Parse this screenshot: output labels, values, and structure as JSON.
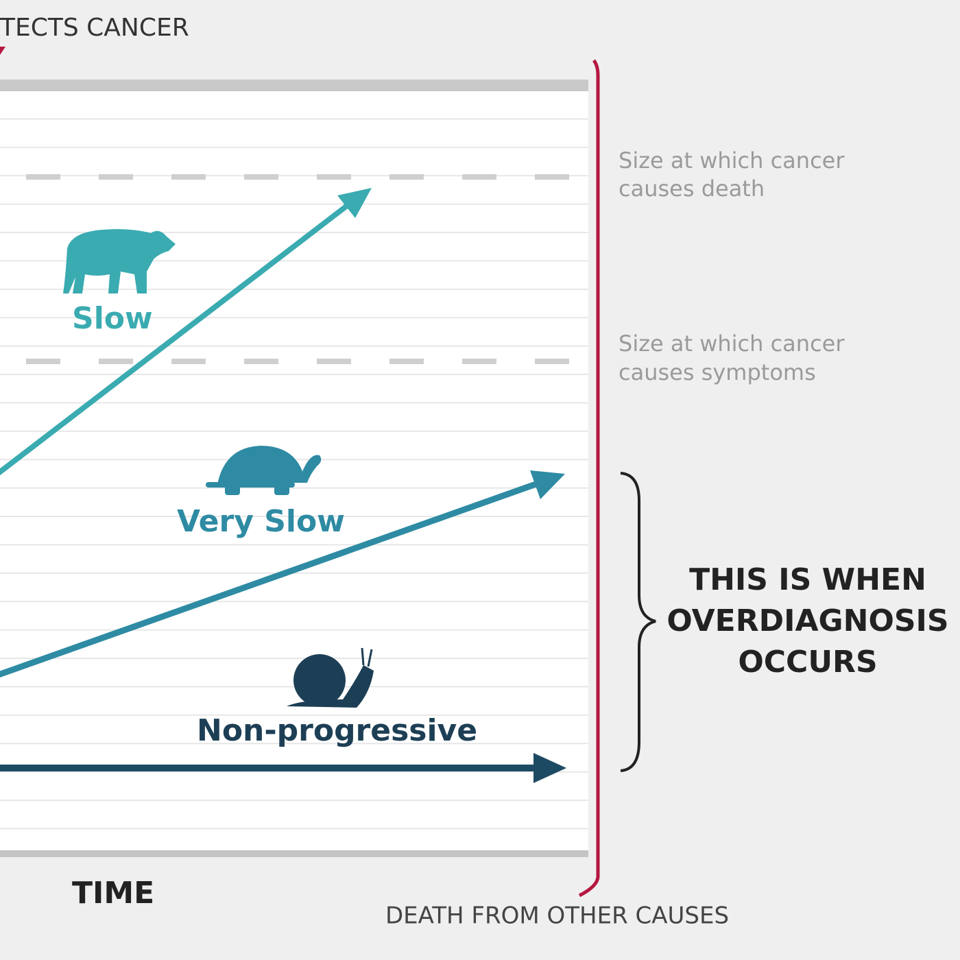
{
  "header": {
    "title": "TECTS CANCER"
  },
  "thresholds": [
    {
      "lines": [
        "Size at which cancer",
        "causes death"
      ]
    },
    {
      "lines": [
        "Size at which cancer",
        "causes symptoms"
      ]
    }
  ],
  "growth_types": [
    {
      "label": "Slow"
    },
    {
      "label": "Very Slow"
    },
    {
      "label": "Non-progressive"
    }
  ],
  "callout": {
    "lines": [
      "THIS IS WHEN",
      "OVERDIAGNOSIS",
      "OCCURS"
    ]
  },
  "x_axis": {
    "label": "TIME"
  },
  "end_marker": {
    "label": "DEATH FROM OTHER CAUSES"
  }
}
